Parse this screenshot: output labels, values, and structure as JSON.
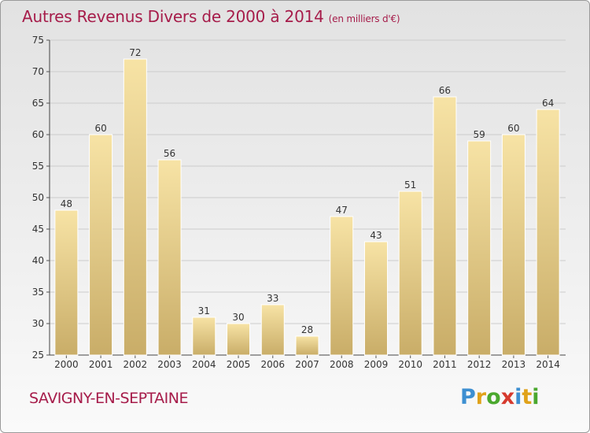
{
  "header": {
    "title": "Autres Revenus Divers de 2000 à 2014",
    "unit": "(en milliers d'€)"
  },
  "footer": {
    "commune": "SAVIGNY-EN-SEPTAINE",
    "logo": "Proxiti"
  },
  "colors": {
    "title": "#a61c4a",
    "bar_light": "#f7e3a5",
    "bar_dark": "#c9ad68",
    "gridline": "#cccccc"
  },
  "chart_data": {
    "type": "bar",
    "title": "Autres Revenus Divers de 2000 à 2014",
    "subtitle": "(en milliers d'€)",
    "xlabel": "",
    "ylabel": "",
    "categories": [
      "2000",
      "2001",
      "2002",
      "2003",
      "2004",
      "2005",
      "2006",
      "2007",
      "2008",
      "2009",
      "2010",
      "2011",
      "2012",
      "2013",
      "2014"
    ],
    "values": [
      48,
      60,
      72,
      56,
      31,
      30,
      33,
      28,
      47,
      43,
      51,
      66,
      59,
      60,
      64
    ],
    "ylim": [
      25,
      75
    ],
    "yticks": [
      25,
      30,
      35,
      40,
      45,
      50,
      55,
      60,
      65,
      70,
      75
    ],
    "grid": true,
    "data_labels": true
  }
}
